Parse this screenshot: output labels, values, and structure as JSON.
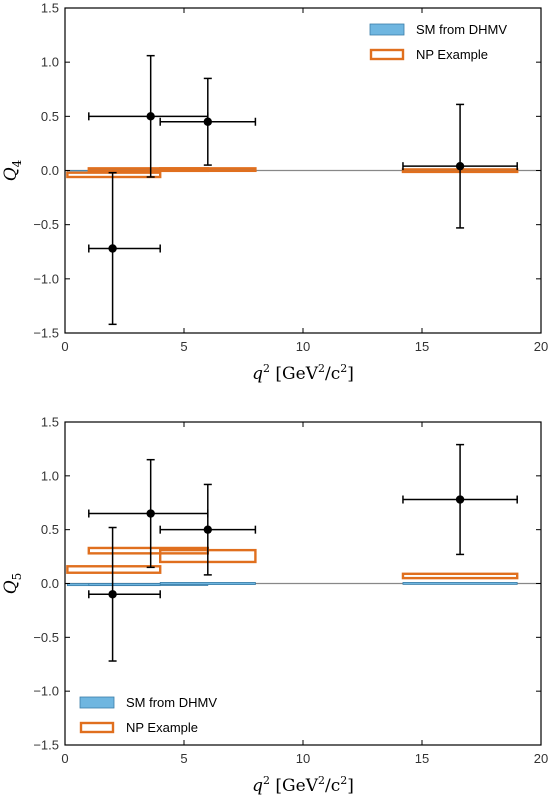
{
  "colors": {
    "sm_fill": "#6fb6e0",
    "sm_edge": "#3b7ea8",
    "np_edge": "#e06f1e",
    "data": "#000000",
    "zero_line": "#888888"
  },
  "chart_data": [
    {
      "type": "scatter",
      "ylabel": "Q4",
      "xlabel": "q² [GeV²/c²]",
      "xlim": [
        0,
        20
      ],
      "ylim": [
        -1.5,
        1.5
      ],
      "x_ticks": [
        "0",
        "5",
        "10",
        "15",
        "20"
      ],
      "y_ticks": [
        "−1.5",
        "−1.0",
        "−0.5",
        "0.0",
        "0.5",
        "1.0",
        "1.5"
      ],
      "grid": false,
      "legend": {
        "position": "top-right",
        "entries": [
          "SM from DHMV",
          "NP Example"
        ]
      },
      "measurements": [
        {
          "x": 2.0,
          "xerr_low": 1.0,
          "xerr_high": 2.0,
          "y": -0.72,
          "yerr_low": 0.7,
          "yerr_high": 0.7
        },
        {
          "x": 3.6,
          "xerr_low": 2.6,
          "xerr_high": 2.4,
          "y": 0.5,
          "yerr_low": 0.56,
          "yerr_high": 0.56
        },
        {
          "x": 6.0,
          "xerr_low": 2.0,
          "xerr_high": 2.0,
          "y": 0.45,
          "yerr_low": 0.4,
          "yerr_high": 0.4
        },
        {
          "x": 16.6,
          "xerr_low": 2.4,
          "xerr_high": 2.4,
          "y": 0.04,
          "yerr_low": 0.57,
          "yerr_high": 0.57
        }
      ],
      "sm_bins": [
        {
          "x0": 0.1,
          "x1": 4.0,
          "y0": -0.02,
          "y1": 0.0
        },
        {
          "x0": 1.0,
          "x1": 6.0,
          "y0": 0.0,
          "y1": 0.01
        },
        {
          "x0": 4.0,
          "x1": 8.0,
          "y0": 0.0,
          "y1": 0.01
        },
        {
          "x0": 14.2,
          "x1": 19.0,
          "y0": -0.01,
          "y1": 0.0
        }
      ],
      "np_bins": [
        {
          "x0": 0.1,
          "x1": 4.0,
          "y0": -0.06,
          "y1": -0.02
        },
        {
          "x0": 1.0,
          "x1": 6.0,
          "y0": 0.0,
          "y1": 0.02
        },
        {
          "x0": 4.0,
          "x1": 8.0,
          "y0": 0.0,
          "y1": 0.02
        },
        {
          "x0": 14.2,
          "x1": 19.0,
          "y0": -0.01,
          "y1": 0.01
        }
      ]
    },
    {
      "type": "scatter",
      "ylabel": "Q5",
      "xlabel": "q² [GeV²/c²]",
      "xlim": [
        0,
        20
      ],
      "ylim": [
        -1.5,
        1.5
      ],
      "x_ticks": [
        "0",
        "5",
        "10",
        "15",
        "20"
      ],
      "y_ticks": [
        "−1.5",
        "−1.0",
        "−0.5",
        "0.0",
        "0.5",
        "1.0",
        "1.5"
      ],
      "grid": false,
      "legend": {
        "position": "bottom-left",
        "entries": [
          "SM from DHMV",
          "NP Example"
        ]
      },
      "measurements": [
        {
          "x": 2.0,
          "xerr_low": 1.0,
          "xerr_high": 2.0,
          "y": -0.1,
          "yerr_low": 0.62,
          "yerr_high": 0.62
        },
        {
          "x": 3.6,
          "xerr_low": 2.6,
          "xerr_high": 2.4,
          "y": 0.65,
          "yerr_low": 0.5,
          "yerr_high": 0.5
        },
        {
          "x": 6.0,
          "xerr_low": 2.0,
          "xerr_high": 2.0,
          "y": 0.5,
          "yerr_low": 0.42,
          "yerr_high": 0.42
        },
        {
          "x": 16.6,
          "xerr_low": 2.4,
          "xerr_high": 2.4,
          "y": 0.78,
          "yerr_low": 0.51,
          "yerr_high": 0.51
        }
      ],
      "sm_bins": [
        {
          "x0": 0.1,
          "x1": 4.0,
          "y0": -0.02,
          "y1": 0.0
        },
        {
          "x0": 1.0,
          "x1": 6.0,
          "y0": -0.01,
          "y1": 0.0
        },
        {
          "x0": 4.0,
          "x1": 8.0,
          "y0": -0.01,
          "y1": 0.01
        },
        {
          "x0": 14.2,
          "x1": 19.0,
          "y0": 0.0,
          "y1": 0.01
        }
      ],
      "np_bins": [
        {
          "x0": 0.1,
          "x1": 4.0,
          "y0": 0.1,
          "y1": 0.16
        },
        {
          "x0": 1.0,
          "x1": 6.0,
          "y0": 0.28,
          "y1": 0.33
        },
        {
          "x0": 4.0,
          "x1": 8.0,
          "y0": 0.2,
          "y1": 0.31
        },
        {
          "x0": 14.2,
          "x1": 19.0,
          "y0": 0.05,
          "y1": 0.09
        }
      ]
    }
  ]
}
